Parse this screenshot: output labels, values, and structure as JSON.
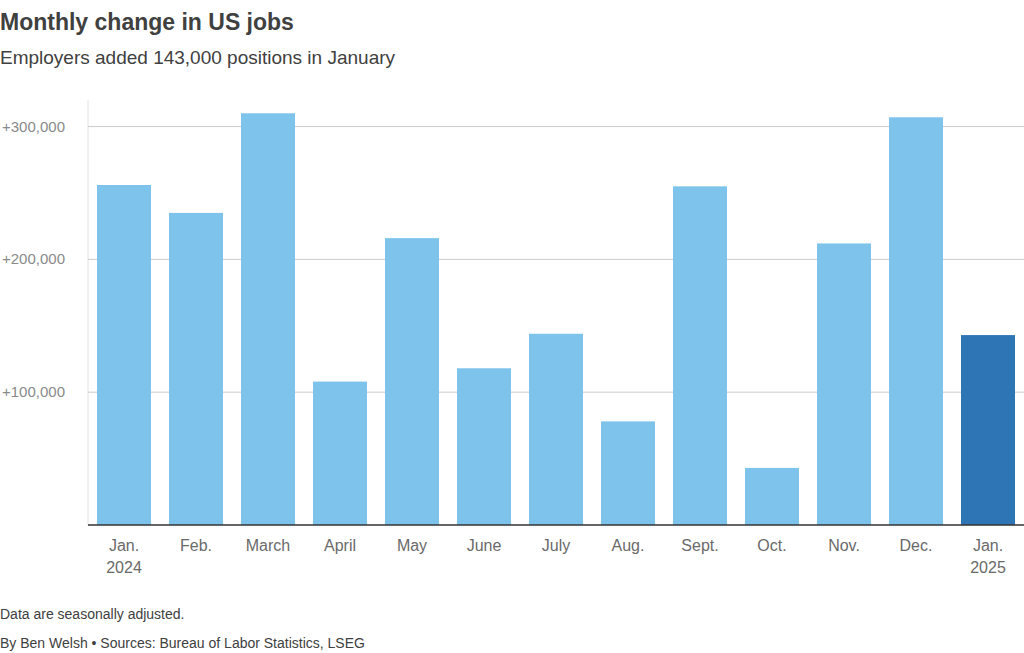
{
  "chart_data": {
    "type": "bar",
    "title": "Monthly change in US jobs",
    "subtitle": "Employers added 143,000 positions in January",
    "note": "Data are seasonally adjusted.",
    "source": "By Ben Welsh • Sources: Bureau of Labor Statistics, LSEG",
    "categories": [
      "Jan. 2024",
      "Feb.",
      "March",
      "April",
      "May",
      "June",
      "July",
      "Aug.",
      "Sept.",
      "Oct.",
      "Nov.",
      "Dec.",
      "Jan. 2025"
    ],
    "values": [
      256000,
      235000,
      310000,
      108000,
      216000,
      118000,
      144000,
      78000,
      255000,
      43000,
      212000,
      307000,
      143000
    ],
    "colors": [
      "#7dc3ec",
      "#7dc3ec",
      "#7dc3ec",
      "#7dc3ec",
      "#7dc3ec",
      "#7dc3ec",
      "#7dc3ec",
      "#7dc3ec",
      "#7dc3ec",
      "#7dc3ec",
      "#7dc3ec",
      "#7dc3ec",
      "#2e75b6"
    ],
    "ylim": [
      0,
      320000
    ],
    "yticks": [
      {
        "value": 100000,
        "label": "+100,000"
      },
      {
        "value": 200000,
        "label": "+200,000"
      },
      {
        "value": 300000,
        "label": "+300,000"
      }
    ],
    "grid": true
  }
}
